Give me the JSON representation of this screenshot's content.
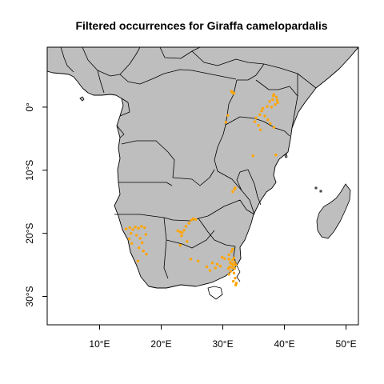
{
  "chart_data": {
    "type": "map",
    "title": "Filtered occurrences for Giraffa camelopardalis",
    "species": "Giraffa camelopardalis",
    "point_color": "#FFA500",
    "land_color": "#BEBEBE",
    "border_color": "#000000",
    "xlim": [
      1.5,
      52
    ],
    "ylim": [
      -34.5,
      9.5
    ],
    "x_ticks": [
      10,
      20,
      30,
      40,
      50
    ],
    "x_tick_labels": [
      "10°E",
      "20°E",
      "30°E",
      "40°E",
      "50°E"
    ],
    "y_ticks": [
      0,
      -10,
      -20,
      -30
    ],
    "y_tick_labels": [
      "0°",
      "10°S",
      "20°S",
      "30°S"
    ],
    "occurrences": [
      [
        31.6,
        2.3
      ],
      [
        31.4,
        2.5
      ],
      [
        31.8,
        2.2
      ],
      [
        38.3,
        2.0
      ],
      [
        38.7,
        1.6
      ],
      [
        38.1,
        1.2
      ],
      [
        37.6,
        0.9
      ],
      [
        38.9,
        0.7
      ],
      [
        38.5,
        0.4
      ],
      [
        37.2,
        0.1
      ],
      [
        37.9,
        0.0
      ],
      [
        38.2,
        1.8
      ],
      [
        38.8,
        1.1
      ],
      [
        36.5,
        -0.2
      ],
      [
        36.3,
        -0.6
      ],
      [
        36.0,
        -1.2
      ],
      [
        35.4,
        -1.7
      ],
      [
        35.2,
        -2.3
      ],
      [
        36.8,
        -1.4
      ],
      [
        37.3,
        -2.0
      ],
      [
        37.7,
        -2.6
      ],
      [
        38.3,
        -3.2
      ],
      [
        36.1,
        -3.6
      ],
      [
        35.8,
        -2.9
      ],
      [
        30.8,
        -1.3
      ],
      [
        30.5,
        -2.4
      ],
      [
        34.9,
        -7.7
      ],
      [
        38.6,
        -7.6
      ],
      [
        31.9,
        -13.0
      ],
      [
        31.6,
        -13.4
      ],
      [
        32.0,
        -12.8
      ],
      [
        14.3,
        -19.3
      ],
      [
        14.9,
        -19.1
      ],
      [
        15.4,
        -19.4
      ],
      [
        15.8,
        -19.0
      ],
      [
        16.3,
        -19.2
      ],
      [
        16.8,
        -18.9
      ],
      [
        17.3,
        -19.1
      ],
      [
        15.1,
        -20.0
      ],
      [
        16.0,
        -20.3
      ],
      [
        16.6,
        -20.8
      ],
      [
        15.2,
        -21.6
      ],
      [
        16.4,
        -22.3
      ],
      [
        17.1,
        -22.8
      ],
      [
        17.6,
        -23.3
      ],
      [
        14.8,
        -20.9
      ],
      [
        16.2,
        -24.4
      ],
      [
        16.9,
        -21.5
      ],
      [
        17.5,
        -20.2
      ],
      [
        22.7,
        -19.6
      ],
      [
        23.1,
        -19.8
      ],
      [
        23.4,
        -19.9
      ],
      [
        23.7,
        -19.5
      ],
      [
        24.0,
        -18.9
      ],
      [
        24.5,
        -18.4
      ],
      [
        24.9,
        -17.9
      ],
      [
        25.2,
        -17.7
      ],
      [
        25.6,
        -17.8
      ],
      [
        23.3,
        -20.4
      ],
      [
        24.2,
        -21.3
      ],
      [
        23.1,
        -21.9
      ],
      [
        24.8,
        -24.1
      ],
      [
        26.0,
        -24.4
      ],
      [
        29.9,
        -23.8
      ],
      [
        30.3,
        -24.0
      ],
      [
        31.0,
        -23.4
      ],
      [
        31.4,
        -22.9
      ],
      [
        31.8,
        -23.9
      ],
      [
        31.2,
        -24.6
      ],
      [
        31.7,
        -25.0
      ],
      [
        31.5,
        -25.4
      ],
      [
        31.1,
        -25.3
      ],
      [
        31.0,
        -24.1
      ],
      [
        31.6,
        -24.2
      ],
      [
        31.4,
        -24.8
      ],
      [
        31.9,
        -25.6
      ],
      [
        30.9,
        -25.6
      ],
      [
        32.1,
        -25.0
      ],
      [
        31.3,
        -26.0
      ],
      [
        31.8,
        -26.3
      ],
      [
        31.6,
        -22.5
      ],
      [
        31.9,
        -24.6
      ],
      [
        31.0,
        -26.5
      ],
      [
        27.4,
        -25.3
      ],
      [
        28.3,
        -24.7
      ],
      [
        29.1,
        -24.9
      ],
      [
        28.8,
        -25.5
      ],
      [
        27.9,
        -25.9
      ],
      [
        29.6,
        -25.2
      ],
      [
        32.0,
        -27.1
      ],
      [
        31.7,
        -27.6
      ],
      [
        32.2,
        -27.9
      ],
      [
        32.1,
        -28.2
      ]
    ]
  }
}
